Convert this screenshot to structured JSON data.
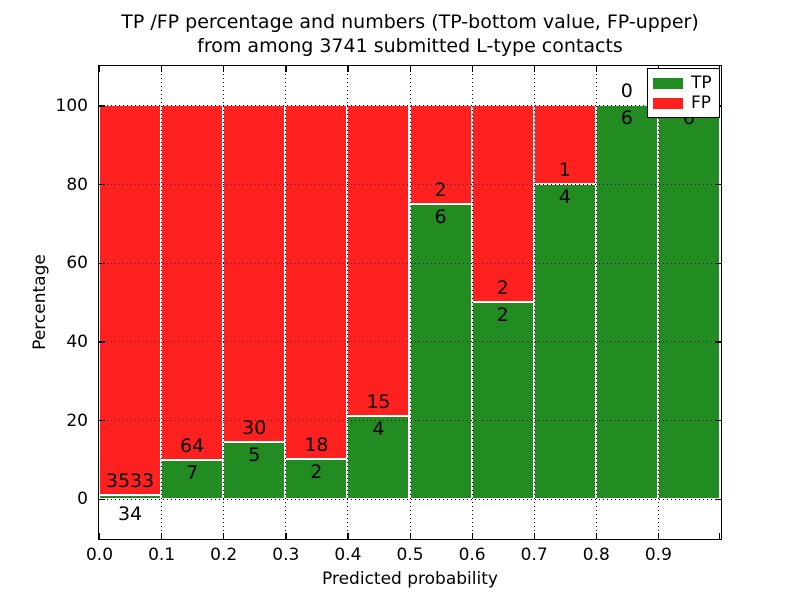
{
  "title": {
    "line1": "TP /FP percentage and numbers (TP-bottom value, FP-upper)",
    "line2": "from among 3741 submitted L-type contacts"
  },
  "axes": {
    "xlabel": "Predicted probability",
    "ylabel": "Percentage",
    "x_tick_labels": [
      "0.0",
      "0.1",
      "0.2",
      "0.3",
      "0.4",
      "0.5",
      "0.6",
      "0.7",
      "0.8",
      "0.9"
    ],
    "y_tick_labels": [
      "0",
      "20",
      "40",
      "60",
      "80",
      "100"
    ],
    "y_tick_values": [
      0,
      20,
      40,
      60,
      80,
      100
    ]
  },
  "legend": {
    "position": "upper right",
    "items": [
      {
        "label": "TP",
        "color": "#228B22"
      },
      {
        "label": "FP",
        "color": "#FF2020"
      }
    ]
  },
  "colors": {
    "tp_green": "#228B22",
    "fp_red": "#FF2020",
    "background": "#FFFFFF",
    "grid": "#000000"
  },
  "chart_data": {
    "type": "bar",
    "stacked": true,
    "normalized_to_percent": true,
    "title": "TP /FP percentage and numbers (TP-bottom value, FP-upper) from among 3741 submitted L-type contacts",
    "xlabel": "Predicted probability",
    "ylabel": "Percentage",
    "bins": [
      "0.0-0.1",
      "0.1-0.2",
      "0.2-0.3",
      "0.3-0.4",
      "0.4-0.5",
      "0.5-0.6",
      "0.6-0.7",
      "0.7-0.8",
      "0.8-0.9",
      "0.9-1.0"
    ],
    "bin_starts": [
      0.0,
      0.1,
      0.2,
      0.3,
      0.4,
      0.5,
      0.6,
      0.7,
      0.8,
      0.9
    ],
    "bin_width": 0.1,
    "series": [
      {
        "name": "TP",
        "color": "#228B22",
        "counts": [
          34,
          7,
          5,
          2,
          4,
          6,
          2,
          4,
          6,
          6
        ]
      },
      {
        "name": "FP",
        "color": "#FF2020",
        "counts": [
          3533,
          64,
          30,
          18,
          15,
          2,
          2,
          1,
          0,
          0
        ]
      }
    ],
    "tp_percent": [
      0.95,
      9.86,
      14.29,
      10.0,
      21.05,
      75.0,
      50.0,
      80.0,
      100.0,
      100.0
    ],
    "total_contacts": 3741,
    "xlim": [
      0.0,
      1.0
    ],
    "ylim": [
      -10,
      110
    ],
    "grid": "dotted, drawn over bars",
    "bar_edge_color": "#FFFFFF",
    "legend_position": "upper right",
    "label_note": "TP count printed below segment boundary, FP count printed above it"
  }
}
